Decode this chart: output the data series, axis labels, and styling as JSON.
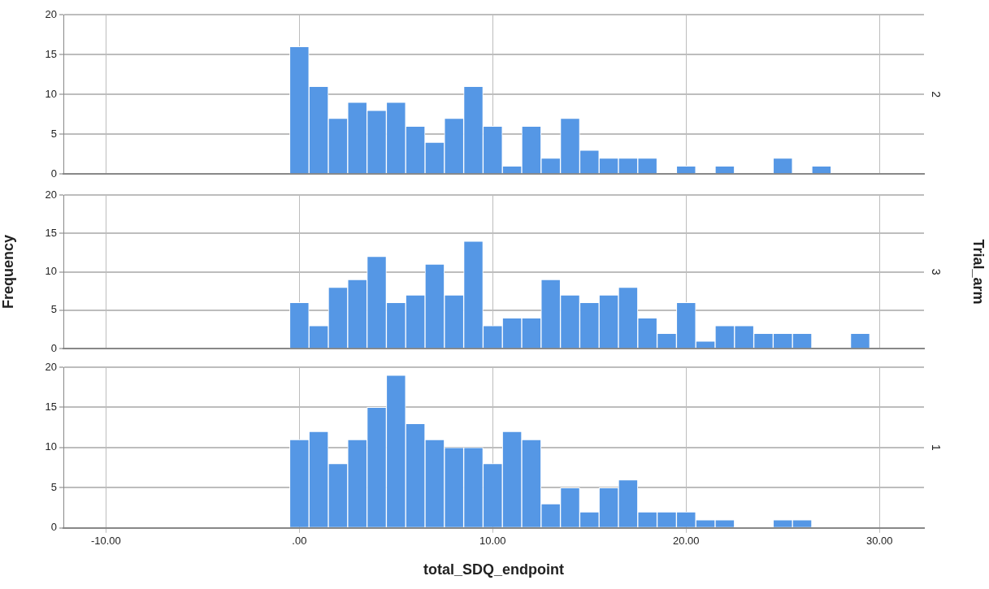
{
  "chart_data": [
    {
      "type": "histogram",
      "title": "2",
      "bins": [
        -0.5,
        0.5,
        1.5,
        2.5,
        3.5,
        4.5,
        5.5,
        6.5,
        7.5,
        8.5,
        9.5,
        10.5,
        11.5,
        12.5,
        13.5,
        14.5,
        15.5,
        16.5,
        17.5,
        18.5,
        19.5,
        20.5,
        21.5,
        22.5,
        23.5,
        24.5,
        25.5,
        26.5,
        27.5
      ],
      "values": [
        16,
        11,
        7,
        9,
        8,
        9,
        6,
        4,
        7,
        11,
        6,
        1,
        6,
        2,
        7,
        3,
        2,
        2,
        2,
        0,
        1,
        0,
        1,
        0,
        0,
        2,
        0,
        1
      ],
      "color": "#5597e5",
      "xlim": [
        -12.2,
        32.3
      ],
      "xticks": [
        -10,
        0,
        10,
        20,
        30
      ],
      "ylim": [
        0,
        20
      ],
      "yticks": [
        0,
        5,
        10,
        15,
        20
      ],
      "grid": true,
      "tick_labels": "y"
    },
    {
      "type": "histogram",
      "title": "3",
      "ylabel": "Frequency",
      "y2label": "Trial_arm",
      "bins": [
        -0.5,
        0.5,
        1.5,
        2.5,
        3.5,
        4.5,
        5.5,
        6.5,
        7.5,
        8.5,
        9.5,
        10.5,
        11.5,
        12.5,
        13.5,
        14.5,
        15.5,
        16.5,
        17.5,
        18.5,
        19.5,
        20.5,
        21.5,
        22.5,
        23.5,
        24.5,
        25.5,
        26.5,
        27.5,
        28.5,
        29.5
      ],
      "values": [
        6,
        3,
        8,
        9,
        12,
        6,
        7,
        11,
        7,
        14,
        3,
        4,
        4,
        9,
        7,
        6,
        7,
        8,
        4,
        2,
        6,
        1,
        3,
        3,
        2,
        2,
        2,
        0,
        0,
        2
      ],
      "color": "#5597e5",
      "xlim": [
        -12.2,
        32.3
      ],
      "xticks": [
        -10,
        0,
        10,
        20,
        30
      ],
      "ylim": [
        0,
        20
      ],
      "yticks": [
        0,
        5,
        10,
        15,
        20
      ],
      "grid": true,
      "tick_labels": "y"
    },
    {
      "type": "histogram",
      "title": "1",
      "xlabel": "total_SDQ_endpoint",
      "bins": [
        -0.5,
        0.5,
        1.5,
        2.5,
        3.5,
        4.5,
        5.5,
        6.5,
        7.5,
        8.5,
        9.5,
        10.5,
        11.5,
        12.5,
        13.5,
        14.5,
        15.5,
        16.5,
        17.5,
        18.5,
        19.5,
        20.5,
        21.5,
        22.5,
        23.5,
        24.5,
        25.5,
        26.5
      ],
      "values": [
        11,
        12,
        8,
        11,
        15,
        19,
        13,
        11,
        10,
        10,
        8,
        12,
        11,
        3,
        5,
        2,
        5,
        6,
        2,
        2,
        2,
        1,
        1,
        0,
        0,
        1,
        1
      ],
      "color": "#5597e5",
      "xlim": [
        -12.2,
        32.3
      ],
      "xticks": [
        {
          "value": -10,
          "label": "-10.00"
        },
        {
          "value": 0,
          "label": ".00"
        },
        {
          "value": 10,
          "label": "10.00"
        },
        {
          "value": 20,
          "label": "20.00"
        },
        {
          "value": 30,
          "label": "30.00"
        }
      ],
      "ylim": [
        0,
        20
      ],
      "yticks": [
        0,
        5,
        10,
        15,
        20
      ],
      "grid": true
    }
  ]
}
